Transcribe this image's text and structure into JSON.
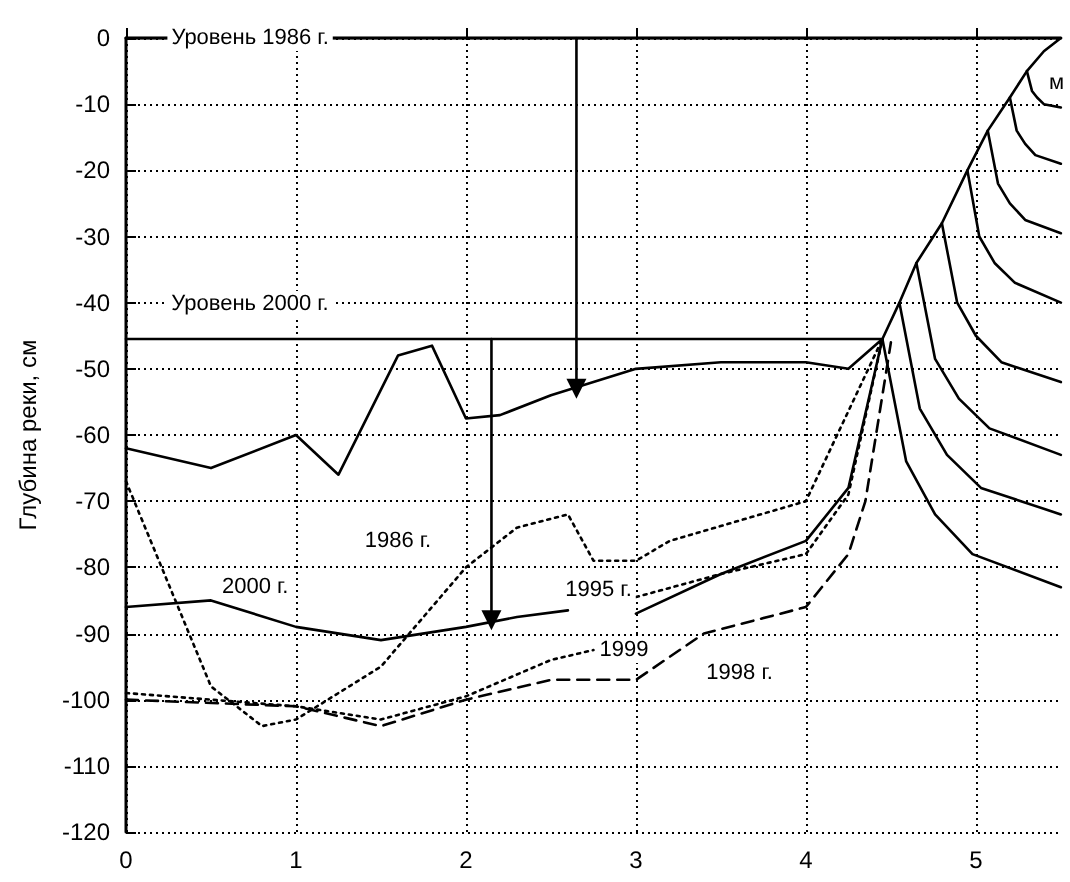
{
  "chart_data": {
    "type": "line",
    "xlabel": "м",
    "ylabel": "Глубина реки, см",
    "xlim": [
      0,
      5.5
    ],
    "xticks": [
      0,
      1,
      2,
      3,
      4,
      5
    ],
    "ylim": [
      -120,
      0
    ],
    "yticks": [
      -120,
      -110,
      -100,
      -90,
      -80,
      -70,
      -60,
      -50,
      -40,
      -30,
      -20,
      -10,
      0
    ],
    "grid": true,
    "marker": "none",
    "line_style": "solid",
    "series": [
      {
        "color": "#000000",
        "x": [
          0,
          5.5,
          5.4,
          5.3,
          5.2,
          5.07,
          4.95,
          4.8,
          4.65,
          4.55,
          4.45,
          0
        ],
        "values": [
          0,
          0,
          -2,
          -5,
          -9,
          -14,
          -20,
          -28,
          -34,
          -40,
          -45.5,
          -45.5
        ]
      },
      {
        "color": "#000000",
        "x": [
          0,
          0.5,
          1,
          1.25,
          1.6,
          1.8,
          2,
          2.2,
          2.5,
          3,
          3.5,
          4,
          4.25,
          4.45
        ],
        "values": [
          -62,
          -65,
          -60,
          -66,
          -48,
          -46.5,
          -57.5,
          -57,
          -54,
          -50,
          -49,
          -49,
          -50,
          -45.5
        ]
      },
      {
        "color": "#000000",
        "x": [
          0,
          0.5,
          1,
          1.5,
          2,
          2.3,
          2.6
        ],
        "values": [
          -86,
          -85,
          -89,
          -91,
          -89,
          -87.5,
          -86.5
        ]
      },
      {
        "color": "#000000",
        "x": [
          3,
          3.5,
          4,
          4.25,
          4.45
        ],
        "values": [
          -87,
          -81,
          -76,
          -68,
          -45.5
        ]
      },
      {
        "color": "#000000",
        "line_style": "dotted",
        "x": [
          0,
          0.5,
          0.8,
          1,
          1.5,
          2,
          2.3,
          2.6,
          2.75,
          3,
          3.2,
          4,
          4.45
        ],
        "values": [
          -67,
          -98,
          -104,
          -103,
          -95,
          -80,
          -74,
          -72,
          -79,
          -79,
          -76,
          -70,
          -45.5
        ]
      },
      {
        "color": "#000000",
        "line_style": "dotted",
        "x": [
          0,
          0.5,
          1,
          1.5,
          2,
          2.5,
          2.75,
          2.85,
          3,
          3.5,
          4,
          4.25,
          4.45
        ],
        "values": [
          -99,
          -100,
          -101,
          -103,
          -99.5,
          -94,
          -92.5,
          null,
          -84.5,
          -81,
          -78,
          -69,
          -45.5
        ]
      },
      {
        "color": "#000000",
        "line_style": "dashed",
        "x": [
          0,
          1,
          1.5,
          2,
          2.5,
          3,
          3.4,
          4,
          4.25,
          4.35,
          4.5
        ],
        "values": [
          -100,
          -101,
          -104,
          -100,
          -97,
          -97,
          -90,
          -86,
          -78,
          -70,
          -46
        ]
      },
      {
        "color": "#000000",
        "x": [
          4.45,
          4.59,
          4.76,
          4.98,
          5.5
        ],
        "values": [
          -45.5,
          -64,
          -72,
          -78,
          -83
        ]
      },
      {
        "color": "#000000",
        "x": [
          4.55,
          4.67,
          4.83,
          5.03,
          5.5
        ],
        "values": [
          -40,
          -56,
          -63,
          -68,
          -72
        ]
      },
      {
        "color": "#000000",
        "x": [
          4.65,
          4.76,
          4.9,
          5.08,
          5.5
        ],
        "values": [
          -34,
          -48.5,
          -54.5,
          -59,
          -63
        ]
      },
      {
        "color": "#000000",
        "x": [
          4.8,
          4.89,
          5.0,
          5.15,
          5.5
        ],
        "values": [
          -28,
          -40,
          -45,
          -49,
          -52
        ]
      },
      {
        "color": "#000000",
        "x": [
          4.95,
          5.02,
          5.11,
          5.23,
          5.5
        ],
        "values": [
          -20,
          -30,
          -34,
          -37,
          -40
        ]
      },
      {
        "color": "#000000",
        "x": [
          5.07,
          5.13,
          5.2,
          5.29,
          5.5
        ],
        "values": [
          -14,
          -22,
          -25,
          -27.5,
          -29.5
        ]
      },
      {
        "color": "#000000",
        "x": [
          5.2,
          5.24,
          5.29,
          5.35,
          5.5
        ],
        "values": [
          -9,
          -14,
          -16,
          -17.7,
          -19
        ]
      },
      {
        "color": "#000000",
        "x": [
          5.3,
          5.33,
          5.36,
          5.4,
          5.5
        ],
        "values": [
          -5,
          -8,
          -9,
          -10,
          -10.5
        ]
      },
      {
        "color": "#000000",
        "marker": "triangle",
        "x": [
          2.65,
          2.65
        ],
        "values": [
          0,
          -53
        ]
      },
      {
        "color": "#000000",
        "marker": "triangle",
        "x": [
          2.15,
          2.15
        ],
        "values": [
          -45.5,
          -88
        ]
      }
    ],
    "annotations": [
      {
        "text": "Уровень 1986 г.",
        "x": 0.73,
        "y": 0
      },
      "Уровень 2000 г.",
      {
        "text": "2000 г.",
        "x": 0.76,
        "y": -83
      },
      {
        "text": "1986 г.",
        "x": 1.6,
        "y": -76
      },
      {
        "text": "1995 г.",
        "x": 2.78,
        "y": -83.5
      },
      {
        "text": "1999",
        "x": 2.93,
        "y": -92.5
      },
      {
        "text": "1998 г.",
        "x": 3.61,
        "y": -96
      }
    ]
  }
}
